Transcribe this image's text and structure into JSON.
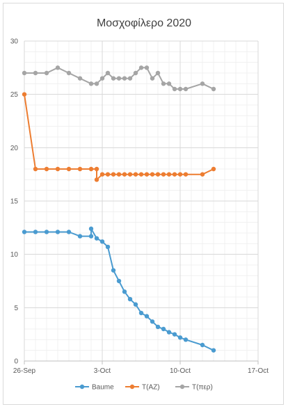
{
  "chart_data": {
    "type": "line",
    "title": "Μοσχοφίλερο 2020",
    "xlabel": "",
    "ylabel": "",
    "ylim": [
      0,
      30
    ],
    "yticks": [
      0,
      5,
      10,
      15,
      20,
      25,
      30
    ],
    "xlim": [
      "2020-09-26",
      "2020-10-17"
    ],
    "xticks": [
      {
        "date": "2020-09-26",
        "label": "26-Sep"
      },
      {
        "date": "2020-10-03",
        "label": "3-Oct"
      },
      {
        "date": "2020-10-10",
        "label": "10-Oct"
      },
      {
        "date": "2020-10-17",
        "label": "17-Oct"
      }
    ],
    "grid": true,
    "legend": "bottom",
    "series": [
      {
        "name": "Baume",
        "color": "#4a9bd0",
        "points": [
          [
            "2020-09-26T00:00",
            12.1
          ],
          [
            "2020-09-27T00:00",
            12.1
          ],
          [
            "2020-09-28T00:00",
            12.1
          ],
          [
            "2020-09-29T00:00",
            12.1
          ],
          [
            "2020-09-30T00:00",
            12.1
          ],
          [
            "2020-10-01T00:00",
            11.7
          ],
          [
            "2020-10-02T00:00",
            11.7
          ],
          [
            "2020-10-02T00:00",
            12.4
          ],
          [
            "2020-10-02T12:00",
            11.5
          ],
          [
            "2020-10-03T00:00",
            11.2
          ],
          [
            "2020-10-03T12:00",
            10.7
          ],
          [
            "2020-10-04T00:00",
            8.5
          ],
          [
            "2020-10-04T12:00",
            7.5
          ],
          [
            "2020-10-05T00:00",
            6.5
          ],
          [
            "2020-10-05T12:00",
            5.8
          ],
          [
            "2020-10-06T00:00",
            5.3
          ],
          [
            "2020-10-06T12:00",
            4.5
          ],
          [
            "2020-10-07T00:00",
            4.2
          ],
          [
            "2020-10-07T12:00",
            3.7
          ],
          [
            "2020-10-08T00:00",
            3.2
          ],
          [
            "2020-10-08T12:00",
            3.0
          ],
          [
            "2020-10-09T00:00",
            2.7
          ],
          [
            "2020-10-09T12:00",
            2.5
          ],
          [
            "2020-10-10T00:00",
            2.2
          ],
          [
            "2020-10-10T12:00",
            2.0
          ],
          [
            "2020-10-12T00:00",
            1.5
          ],
          [
            "2020-10-13T00:00",
            1.0
          ]
        ]
      },
      {
        "name": "T(AZ)",
        "color": "#ed7d31",
        "points": [
          [
            "2020-09-26T00:00",
            25.0
          ],
          [
            "2020-09-27T00:00",
            18.0
          ],
          [
            "2020-09-28T00:00",
            18.0
          ],
          [
            "2020-09-29T00:00",
            18.0
          ],
          [
            "2020-09-30T00:00",
            18.0
          ],
          [
            "2020-10-01T00:00",
            18.0
          ],
          [
            "2020-10-02T00:00",
            18.0
          ],
          [
            "2020-10-02T12:00",
            18.0
          ],
          [
            "2020-10-02T12:00",
            17.0
          ],
          [
            "2020-10-03T00:00",
            17.5
          ],
          [
            "2020-10-03T12:00",
            17.5
          ],
          [
            "2020-10-04T00:00",
            17.5
          ],
          [
            "2020-10-04T12:00",
            17.5
          ],
          [
            "2020-10-05T00:00",
            17.5
          ],
          [
            "2020-10-05T12:00",
            17.5
          ],
          [
            "2020-10-06T00:00",
            17.5
          ],
          [
            "2020-10-06T12:00",
            17.5
          ],
          [
            "2020-10-07T00:00",
            17.5
          ],
          [
            "2020-10-07T12:00",
            17.5
          ],
          [
            "2020-10-08T00:00",
            17.5
          ],
          [
            "2020-10-08T12:00",
            17.5
          ],
          [
            "2020-10-09T00:00",
            17.5
          ],
          [
            "2020-10-09T12:00",
            17.5
          ],
          [
            "2020-10-10T00:00",
            17.5
          ],
          [
            "2020-10-10T12:00",
            17.5
          ],
          [
            "2020-10-12T00:00",
            17.5
          ],
          [
            "2020-10-13T00:00",
            18.0
          ]
        ]
      },
      {
        "name": "T(περ)",
        "color": "#a5a5a5",
        "points": [
          [
            "2020-09-26T00:00",
            27.0
          ],
          [
            "2020-09-27T00:00",
            27.0
          ],
          [
            "2020-09-28T00:00",
            27.0
          ],
          [
            "2020-09-29T00:00",
            27.5
          ],
          [
            "2020-09-30T00:00",
            27.0
          ],
          [
            "2020-10-01T00:00",
            26.5
          ],
          [
            "2020-10-02T00:00",
            26.0
          ],
          [
            "2020-10-02T12:00",
            26.0
          ],
          [
            "2020-10-03T00:00",
            26.5
          ],
          [
            "2020-10-03T12:00",
            27.0
          ],
          [
            "2020-10-04T00:00",
            26.5
          ],
          [
            "2020-10-04T12:00",
            26.5
          ],
          [
            "2020-10-05T00:00",
            26.5
          ],
          [
            "2020-10-05T12:00",
            26.5
          ],
          [
            "2020-10-06T00:00",
            27.0
          ],
          [
            "2020-10-06T12:00",
            27.5
          ],
          [
            "2020-10-07T00:00",
            27.5
          ],
          [
            "2020-10-07T12:00",
            26.5
          ],
          [
            "2020-10-08T00:00",
            27.0
          ],
          [
            "2020-10-08T12:00",
            26.0
          ],
          [
            "2020-10-09T00:00",
            26.0
          ],
          [
            "2020-10-09T12:00",
            25.5
          ],
          [
            "2020-10-10T00:00",
            25.5
          ],
          [
            "2020-10-10T12:00",
            25.5
          ],
          [
            "2020-10-12T00:00",
            26.0
          ],
          [
            "2020-10-13T00:00",
            25.5
          ]
        ]
      }
    ]
  }
}
